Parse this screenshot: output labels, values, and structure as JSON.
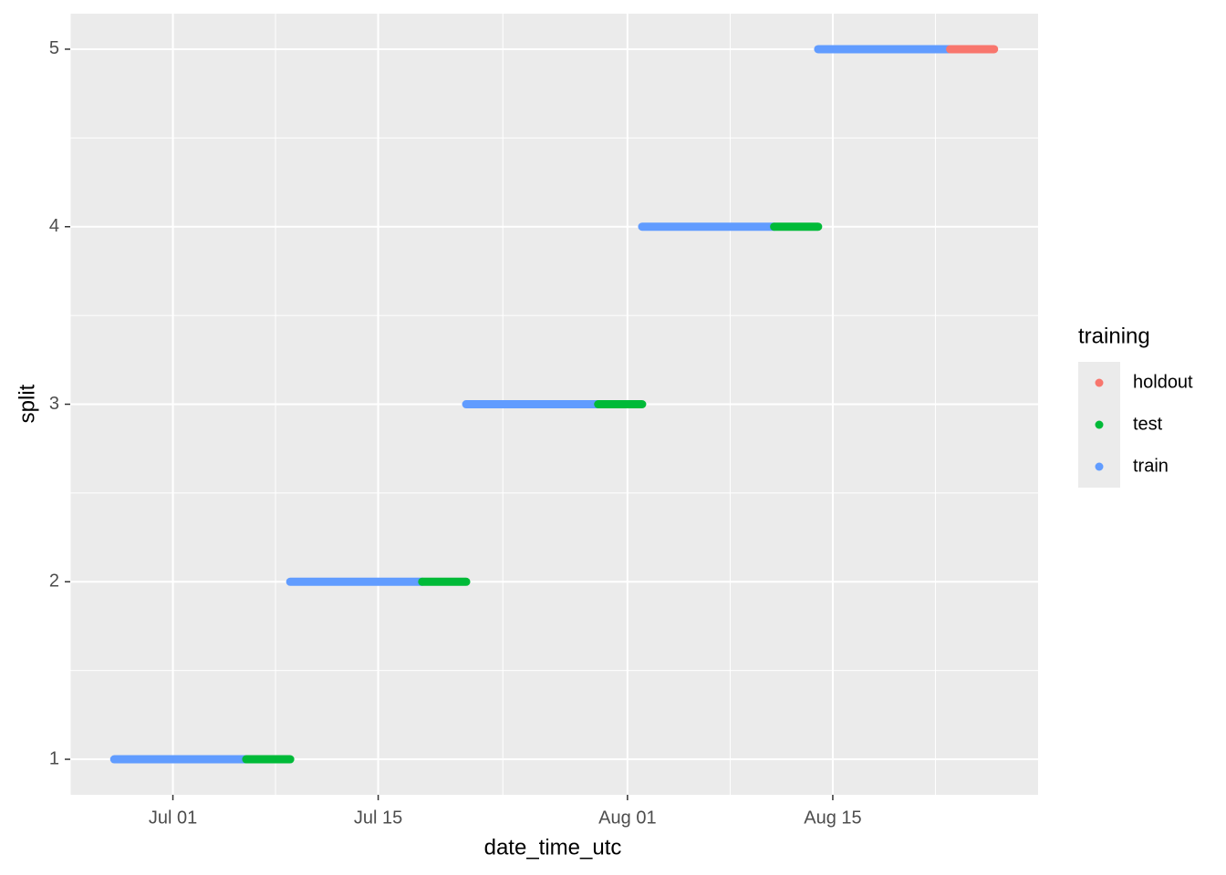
{
  "chart_data": {
    "type": "segment",
    "x_label": "date_time_utc",
    "y_label": "split",
    "xlim": [
      "Jun 24",
      "Aug 29"
    ],
    "xticks": [
      "Jul 01",
      "Jul 15",
      "Aug 01",
      "Aug 15"
    ],
    "ylim": [
      0.8,
      5.2
    ],
    "yticks": [
      1,
      2,
      3,
      4,
      5
    ],
    "grid": true,
    "legend_title": "training",
    "legend_position": "right",
    "series": [
      {
        "name": "holdout",
        "color": "#F8766D",
        "values": [
          5
        ],
        "start": [
          "Aug 23"
        ],
        "end": [
          "Aug 26"
        ]
      },
      {
        "name": "test",
        "color": "#00BA38",
        "values": [
          1,
          2,
          3,
          4
        ],
        "start": [
          "Jul 06",
          "Jul 18",
          "Jul 30",
          "Aug 11"
        ],
        "end": [
          "Jul 09",
          "Jul 21",
          "Aug 02",
          "Aug 14"
        ]
      },
      {
        "name": "train",
        "color": "#619CFF",
        "values": [
          1,
          2,
          3,
          4,
          5
        ],
        "start": [
          "Jun 27",
          "Jul 09",
          "Jul 21",
          "Aug 02",
          "Aug 14"
        ],
        "end": [
          "Jul 06",
          "Jul 18",
          "Jul 30",
          "Aug 11",
          "Aug 23"
        ]
      }
    ]
  }
}
